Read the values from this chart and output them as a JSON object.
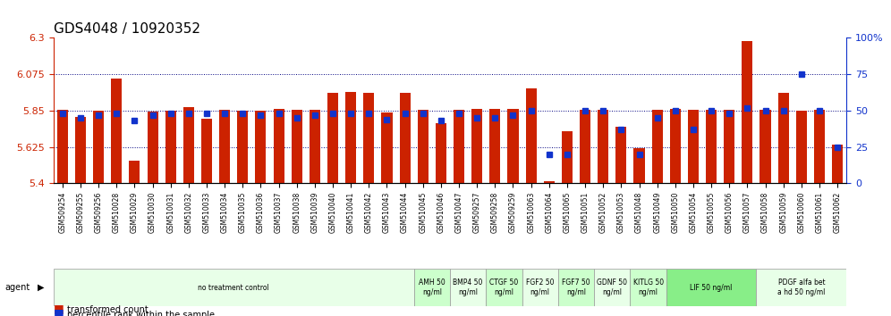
{
  "title": "GDS4048 / 10920352",
  "samples": [
    "GSM509254",
    "GSM509255",
    "GSM509256",
    "GSM510028",
    "GSM510029",
    "GSM510030",
    "GSM510031",
    "GSM510032",
    "GSM510033",
    "GSM510034",
    "GSM510035",
    "GSM510036",
    "GSM510037",
    "GSM510038",
    "GSM510039",
    "GSM510040",
    "GSM510041",
    "GSM510042",
    "GSM510043",
    "GSM510044",
    "GSM510045",
    "GSM510046",
    "GSM510047",
    "GSM509257",
    "GSM509258",
    "GSM509259",
    "GSM510063",
    "GSM510064",
    "GSM510065",
    "GSM510051",
    "GSM510052",
    "GSM510053",
    "GSM510048",
    "GSM510049",
    "GSM510050",
    "GSM510054",
    "GSM510055",
    "GSM510056",
    "GSM510057",
    "GSM510058",
    "GSM510059",
    "GSM510060",
    "GSM510061",
    "GSM510062"
  ],
  "bar_values": [
    5.855,
    5.81,
    5.85,
    6.05,
    5.54,
    5.845,
    5.848,
    5.87,
    5.8,
    5.855,
    5.852,
    5.852,
    5.858,
    5.855,
    5.853,
    5.96,
    5.968,
    5.96,
    5.84,
    5.96,
    5.855,
    5.77,
    5.855,
    5.86,
    5.858,
    5.858,
    5.985,
    5.415,
    5.72,
    5.855,
    5.855,
    5.75,
    5.62,
    5.855,
    5.858,
    5.855,
    5.855,
    5.855,
    6.28,
    5.855,
    5.962,
    5.85,
    5.855,
    5.638
  ],
  "percentile_values": [
    48,
    45,
    47,
    48,
    43,
    47,
    48,
    48,
    48,
    48,
    48,
    47,
    48,
    45,
    47,
    48,
    48,
    48,
    44,
    48,
    48,
    43,
    48,
    45,
    45,
    47,
    50,
    20,
    20,
    50,
    50,
    37,
    20,
    45,
    50,
    37,
    50,
    48,
    52,
    50,
    50,
    75,
    50,
    25
  ],
  "agents": [
    {
      "label": "no treatment control",
      "start": 0,
      "end": 20,
      "color": "#e8ffe8"
    },
    {
      "label": "AMH 50\nng/ml",
      "start": 20,
      "end": 22,
      "color": "#ccffcc"
    },
    {
      "label": "BMP4 50\nng/ml",
      "start": 22,
      "end": 24,
      "color": "#e8ffe8"
    },
    {
      "label": "CTGF 50\nng/ml",
      "start": 24,
      "end": 26,
      "color": "#ccffcc"
    },
    {
      "label": "FGF2 50\nng/ml",
      "start": 26,
      "end": 28,
      "color": "#e8ffe8"
    },
    {
      "label": "FGF7 50\nng/ml",
      "start": 28,
      "end": 30,
      "color": "#ccffcc"
    },
    {
      "label": "GDNF 50\nng/ml",
      "start": 30,
      "end": 32,
      "color": "#e8ffe8"
    },
    {
      "label": "KITLG 50\nng/ml",
      "start": 32,
      "end": 34,
      "color": "#ccffcc"
    },
    {
      "label": "LIF 50 ng/ml",
      "start": 34,
      "end": 39,
      "color": "#88ee88"
    },
    {
      "label": "PDGF alfa bet\na hd 50 ng/ml",
      "start": 39,
      "end": 44,
      "color": "#e8ffe8"
    }
  ],
  "ylim_left": [
    5.4,
    6.3
  ],
  "ylim_right": [
    0,
    100
  ],
  "yticks_left": [
    5.4,
    5.625,
    5.85,
    6.075,
    6.3
  ],
  "ytick_labels_left": [
    "5.4",
    "5.625",
    "5.85",
    "6.075",
    "6.3"
  ],
  "yticks_right": [
    0,
    25,
    50,
    75,
    100
  ],
  "ytick_labels_right": [
    "0",
    "25",
    "50",
    "75",
    "100%"
  ],
  "bar_color": "#cc2200",
  "dot_color": "#1133cc",
  "background_color": "#ffffff",
  "grid_lines": [
    5.625,
    5.85,
    6.075
  ],
  "title_fontsize": 11
}
